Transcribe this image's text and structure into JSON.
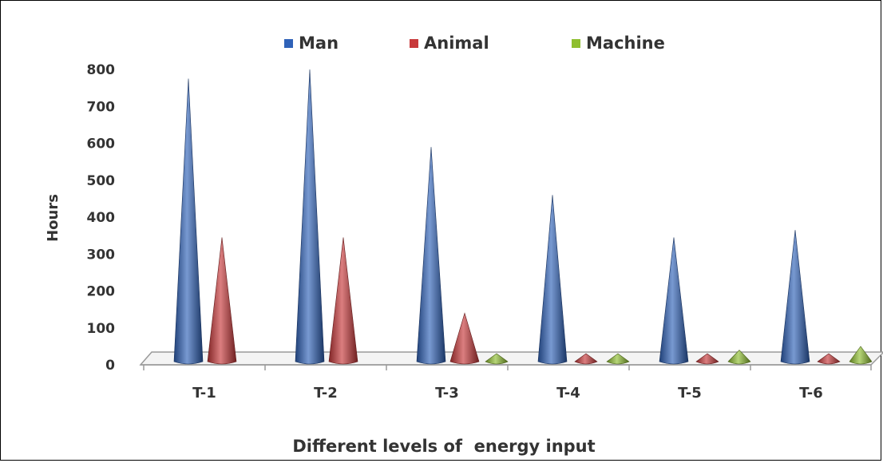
{
  "chart_data": {
    "type": "bar",
    "style": "3d-cone",
    "categories": [
      "T-1",
      "T-2",
      "T-3",
      "T-4",
      "T-5",
      "T-6"
    ],
    "series": [
      {
        "name": "Man",
        "values": [
          775,
          800,
          590,
          460,
          345,
          365
        ],
        "color": "#2f62b8"
      },
      {
        "name": "Animal",
        "values": [
          345,
          345,
          140,
          10,
          10,
          10
        ],
        "color": "#c8393a"
      },
      {
        "name": "Machine",
        "values": [
          0,
          0,
          20,
          25,
          40,
          50
        ],
        "color": "#8fbf2f"
      }
    ],
    "title": "",
    "xlabel": "Different levels of  energy input",
    "ylabel": "Hours",
    "ylim": [
      0,
      800
    ],
    "yticks": [
      "0",
      "100",
      "200",
      "300",
      "400",
      "500",
      "600",
      "700",
      "800"
    ],
    "grid": false,
    "legend": "top-center"
  }
}
